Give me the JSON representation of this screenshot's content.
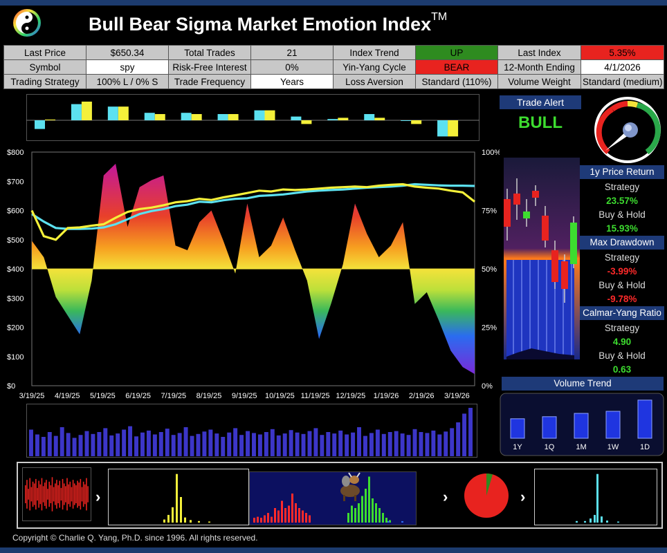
{
  "header": {
    "title": "Bull Bear Sigma Market Emotion Index",
    "trademark": "TM"
  },
  "info_table": {
    "rows": [
      [
        {
          "label": "Last Price",
          "value": "$650.34"
        },
        {
          "label": "Total Trades",
          "value": "21"
        },
        {
          "label": "Index Trend",
          "value": "UP"
        },
        {
          "label": "Last Index",
          "value": "5.35%"
        }
      ],
      [
        {
          "label": "Symbol",
          "value": "spy"
        },
        {
          "label": "Risk-Free Interest",
          "value": "0%"
        },
        {
          "label": "Yin-Yang Cycle",
          "value": "BEAR"
        },
        {
          "label": "12-Month Ending",
          "value": "4/1/2026"
        }
      ],
      [
        {
          "label": "Trading Strategy",
          "value": "100% L / 0% S"
        },
        {
          "label": "Trade Frequency",
          "value": "Years"
        },
        {
          "label": "Loss Aversion",
          "value": "Standard (110%)"
        },
        {
          "label": "Volume Weight",
          "value": "Standard (medium)"
        }
      ]
    ]
  },
  "colors": {
    "cyan": "#5ce1f0",
    "yellow": "#f4f03a",
    "up_green": "#2e8b1f",
    "bear_red": "#e8231f",
    "panel_blue": "#1e3a78",
    "positive": "#3ddc2f",
    "negative": "#ff2a2a"
  },
  "trade_alert": {
    "title": "Trade Alert",
    "value": "BULL"
  },
  "stats": {
    "price_return": {
      "title": "1y Price Return",
      "strategy_label": "Strategy",
      "strategy_value": "23.57%",
      "bh_label": "Buy & Hold",
      "bh_value": "15.93%"
    },
    "max_drawdown": {
      "title": "Max Drawdown",
      "strategy_label": "Strategy",
      "strategy_value": "-3.99%",
      "bh_label": "Buy & Hold",
      "bh_value": "-9.78%"
    },
    "calmar": {
      "title": "Calmar-Yang Ratio",
      "strategy_label": "Strategy",
      "strategy_value": "4.90",
      "bh_label": "Buy & Hold",
      "bh_value": "0.63"
    }
  },
  "volume_trend": {
    "title": "Volume Trend",
    "labels": [
      "1Y",
      "1Q",
      "1M",
      "1W",
      "1D"
    ],
    "values": [
      0.47,
      0.52,
      0.6,
      0.65,
      0.92
    ]
  },
  "gauge": {
    "level": 0.18
  },
  "footer": {
    "copyright": "Copyright © Charlie Q. Yang, Ph.D. since 1996.  All rights reserved."
  },
  "chart_data": [
    {
      "type": "bar",
      "title": "",
      "series": [
        {
          "color": "#5ce1f0",
          "values": [
            -3.5,
            6.5,
            5.5,
            3,
            3,
            2.5,
            4,
            1.5,
            0.5,
            2.5,
            0,
            -6.5
          ]
        },
        {
          "color": "#f4f03a",
          "values": [
            0.3,
            7.5,
            5.5,
            2.5,
            2.5,
            2.5,
            4,
            -1.5,
            1,
            1,
            -1.5,
            -6.5
          ]
        }
      ],
      "ylim": [
        -8,
        9
      ]
    },
    {
      "type": "line",
      "title": "",
      "x_ticks": [
        "3/19/25",
        "4/19/25",
        "5/19/25",
        "6/19/25",
        "7/19/25",
        "8/19/25",
        "9/19/25",
        "10/19/25",
        "11/19/25",
        "12/19/25",
        "1/19/26",
        "2/19/26",
        "3/19/26"
      ],
      "y_left_ticks": [
        "$0",
        "$100",
        "$200",
        "$300",
        "$400",
        "$500",
        "$600",
        "$700",
        "$800"
      ],
      "y_right_ticks": [
        "0%",
        "25%",
        "50%",
        "75%",
        "100%"
      ],
      "ylim": [
        0,
        800
      ],
      "series": [
        {
          "color": "#5ce1f0",
          "values": [
            588,
            562,
            540,
            537,
            537,
            538,
            542,
            553,
            570,
            588,
            598,
            605,
            615,
            620,
            630,
            628,
            635,
            640,
            642,
            650,
            652,
            655,
            660,
            665,
            668,
            670,
            672,
            675,
            678,
            680,
            682,
            685,
            690,
            688,
            686,
            685,
            685,
            684
          ]
        },
        {
          "color": "#f4f03a",
          "values": [
            600,
            512,
            500,
            540,
            542,
            548,
            553,
            575,
            595,
            605,
            610,
            618,
            628,
            632,
            640,
            636,
            645,
            652,
            660,
            668,
            665,
            672,
            670,
            672,
            675,
            678,
            680,
            682,
            680,
            685,
            688,
            690,
            682,
            678,
            675,
            668,
            662,
            630
          ]
        }
      ],
      "emotion_index": [
        0.62,
        0.55,
        0.38,
        0.3,
        0.22,
        0.45,
        0.9,
        0.95,
        0.68,
        0.85,
        0.88,
        0.9,
        0.6,
        0.58,
        0.7,
        0.75,
        0.62,
        0.48,
        0.78,
        0.55,
        0.6,
        0.72,
        0.58,
        0.45,
        0.2,
        0.35,
        0.52,
        0.78,
        0.65,
        0.55,
        0.6,
        0.7,
        0.35,
        0.4,
        0.28,
        0.15,
        0.08,
        0.05
      ]
    },
    {
      "type": "bar",
      "title": "",
      "values": [
        0.55,
        0.45,
        0.4,
        0.5,
        0.42,
        0.6,
        0.48,
        0.38,
        0.44,
        0.52,
        0.46,
        0.5,
        0.58,
        0.43,
        0.47,
        0.55,
        0.62,
        0.41,
        0.49,
        0.53,
        0.45,
        0.5,
        0.57,
        0.44,
        0.48,
        0.6,
        0.42,
        0.46,
        0.51,
        0.55,
        0.47,
        0.4,
        0.49,
        0.58,
        0.44,
        0.52,
        0.48,
        0.45,
        0.5,
        0.56,
        0.43,
        0.47,
        0.54,
        0.49,
        0.46,
        0.52,
        0.58,
        0.44,
        0.5,
        0.47,
        0.53,
        0.45,
        0.49,
        0.6,
        0.42,
        0.48,
        0.55,
        0.46,
        0.5,
        0.52,
        0.47,
        0.44,
        0.56,
        0.5,
        0.48,
        0.53,
        0.45,
        0.51,
        0.58,
        0.7,
        0.88,
        1.0
      ]
    }
  ]
}
